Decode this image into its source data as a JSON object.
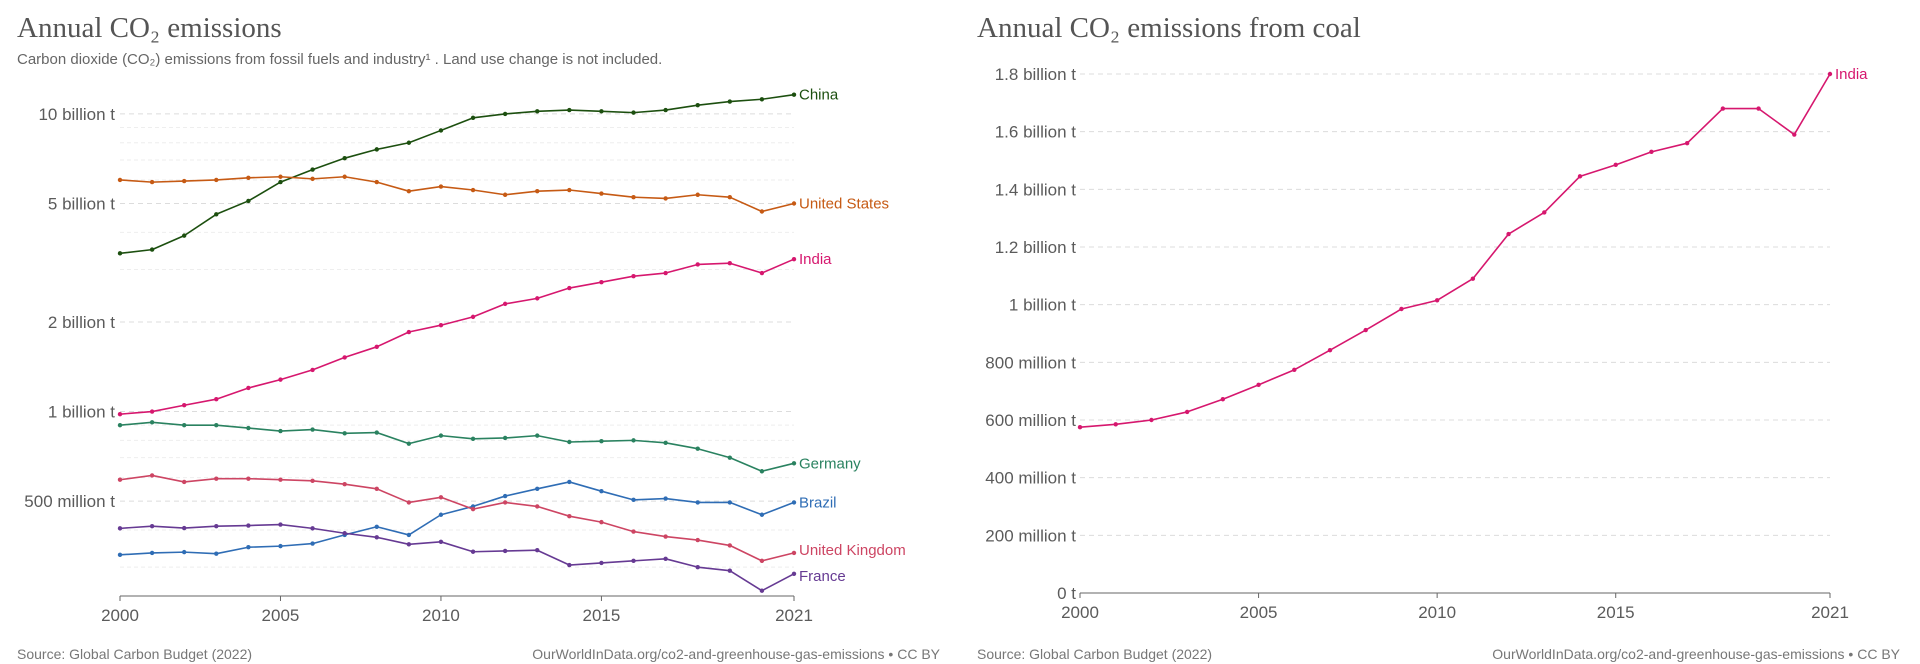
{
  "colors": {
    "China": "#1c4f0f",
    "United States": "#c65a14",
    "India": "#d6176e",
    "Germany": "#2a8260",
    "Brazil": "#2f6db5",
    "United Kingdom": "#cd4563",
    "France": "#663a93",
    "grid": "#dcdcdc",
    "axis": "#666666"
  },
  "left": {
    "title": "Annual CO₂ emissions",
    "subtitle": "Carbon dioxide (CO₂) emissions from fossil fuels and industry¹ . Land use change is not included.",
    "source": "Source: Global Carbon Budget (2022)",
    "url": "OurWorldInData.org/co2-and-greenhouse-gas-emissions • CC BY"
  },
  "right": {
    "title": "Annual CO₂ emissions from coal",
    "source": "Source: Global Carbon Budget (2022)",
    "url": "OurWorldInData.org/co2-and-greenhouse-gas-emissions • CC BY"
  },
  "chart_data": [
    {
      "type": "line",
      "title": "Annual CO₂ emissions",
      "subtitle": "Carbon dioxide (CO₂) emissions from fossil fuels and industry¹ . Land use change is not included.",
      "y_scale": "log",
      "grid": true,
      "legend": "right",
      "xlim": [
        2000,
        2021
      ],
      "ylim": [
        240000000,
        13000000000
      ],
      "x_ticks": [
        2000,
        2005,
        2010,
        2015,
        2021
      ],
      "x_tick_labels": [
        "2000",
        "2005",
        "2010",
        "2015",
        "2021"
      ],
      "y_ticks": [
        500000000,
        1000000000,
        2000000000,
        5000000000,
        10000000000
      ],
      "y_tick_labels": [
        "500 million t",
        "1 billion t",
        "2 billion t",
        "5 billion t",
        "10 billion t"
      ],
      "x": [
        2000,
        2001,
        2002,
        2003,
        2004,
        2005,
        2006,
        2007,
        2008,
        2009,
        2010,
        2011,
        2012,
        2013,
        2014,
        2015,
        2016,
        2017,
        2018,
        2019,
        2020,
        2021
      ],
      "series": [
        {
          "name": "China",
          "values": [
            3400000000.0,
            3500000000.0,
            3900000000.0,
            4600000000.0,
            5100000000.0,
            5900000000.0,
            6500000000.0,
            7100000000.0,
            7600000000.0,
            8000000000.0,
            8800000000.0,
            9700000000.0,
            10000000000.0,
            10200000000.0,
            10300000000.0,
            10200000000.0,
            10100000000.0,
            10300000000.0,
            10700000000.0,
            11000000000.0,
            11200000000.0,
            11600000000.0
          ]
        },
        {
          "name": "United States",
          "values": [
            6000000000.0,
            5900000000.0,
            5950000000.0,
            6000000000.0,
            6100000000.0,
            6150000000.0,
            6050000000.0,
            6150000000.0,
            5900000000.0,
            5500000000.0,
            5700000000.0,
            5550000000.0,
            5350000000.0,
            5500000000.0,
            5550000000.0,
            5400000000.0,
            5250000000.0,
            5200000000.0,
            5350000000.0,
            5250000000.0,
            4700000000.0,
            5000000000.0
          ]
        },
        {
          "name": "India",
          "values": [
            980000000.0,
            1000000000.0,
            1050000000.0,
            1100000000.0,
            1200000000.0,
            1280000000.0,
            1380000000.0,
            1520000000.0,
            1650000000.0,
            1850000000.0,
            1950000000.0,
            2080000000.0,
            2300000000.0,
            2400000000.0,
            2600000000.0,
            2720000000.0,
            2850000000.0,
            2920000000.0,
            3120000000.0,
            3150000000.0,
            2920000000.0,
            3250000000.0
          ]
        },
        {
          "name": "Germany",
          "values": [
            900000000.0,
            920000000.0,
            900000000.0,
            900000000.0,
            880000000.0,
            860000000.0,
            870000000.0,
            845000000.0,
            850000000.0,
            780000000.0,
            830000000.0,
            810000000.0,
            815000000.0,
            830000000.0,
            790000000.0,
            795000000.0,
            800000000.0,
            785000000.0,
            750000000.0,
            700000000.0,
            630000000.0,
            670000000.0
          ]
        },
        {
          "name": "Brazil",
          "values": [
            330000000.0,
            335000000.0,
            337000000.0,
            333000000.0,
            350000000.0,
            353000000.0,
            360000000.0,
            385000000.0,
            410000000.0,
            385000000.0,
            450000000.0,
            480000000.0,
            520000000.0,
            550000000.0,
            580000000.0,
            540000000.0,
            505000000.0,
            510000000.0,
            495000000.0,
            495000000.0,
            450000000.0,
            495000000.0
          ]
        },
        {
          "name": "United Kingdom",
          "values": [
            590000000.0,
            610000000.0,
            580000000.0,
            595000000.0,
            595000000.0,
            590000000.0,
            585000000.0,
            570000000.0,
            550000000.0,
            495000000.0,
            515000000.0,
            470000000.0,
            495000000.0,
            480000000.0,
            445000000.0,
            425000000.0,
            395000000.0,
            380000000.0,
            370000000.0,
            355000000.0,
            315000000.0,
            335000000.0
          ]
        },
        {
          "name": "France",
          "values": [
            405000000.0,
            412000000.0,
            406000000.0,
            412000000.0,
            414000000.0,
            417000000.0,
            405000000.0,
            390000000.0,
            378000000.0,
            358000000.0,
            365000000.0,
            338000000.0,
            340000000.0,
            342000000.0,
            305000000.0,
            310000000.0,
            315000000.0,
            320000000.0,
            300000000.0,
            292000000.0,
            250000000.0,
            285000000.0
          ]
        }
      ]
    },
    {
      "type": "line",
      "title": "Annual CO₂ emissions from coal",
      "y_scale": "linear",
      "grid": true,
      "legend": "right",
      "xlim": [
        2000,
        2021
      ],
      "ylim": [
        0,
        1800000000
      ],
      "x_ticks": [
        2000,
        2005,
        2010,
        2015,
        2021
      ],
      "x_tick_labels": [
        "2000",
        "2005",
        "2010",
        "2015",
        "2021"
      ],
      "y_ticks": [
        0,
        200000000,
        400000000,
        600000000,
        800000000,
        1000000000,
        1200000000,
        1400000000,
        1600000000,
        1800000000
      ],
      "y_tick_labels": [
        "0 t",
        "200 million t",
        "400 million t",
        "600 million t",
        "800 million t",
        "1 billion t",
        "1.2 billion t",
        "1.4 billion t",
        "1.6 billion t",
        "1.8 billion t"
      ],
      "x": [
        2000,
        2001,
        2002,
        2003,
        2004,
        2005,
        2006,
        2007,
        2008,
        2009,
        2010,
        2011,
        2012,
        2013,
        2014,
        2015,
        2016,
        2017,
        2018,
        2019,
        2020,
        2021
      ],
      "series": [
        {
          "name": "India",
          "values": [
            575000000.0,
            585000000.0,
            600000000.0,
            628000000.0,
            672000000.0,
            722000000.0,
            774000000.0,
            842000000.0,
            912000000.0,
            985000000.0,
            1015000000.0,
            1090000000.0,
            1245000000.0,
            1320000000.0,
            1445000000.0,
            1485000000.0,
            1530000000.0,
            1560000000.0,
            1680000000.0,
            1680000000.0,
            1590000000.0,
            1800000000.0
          ]
        }
      ]
    }
  ]
}
